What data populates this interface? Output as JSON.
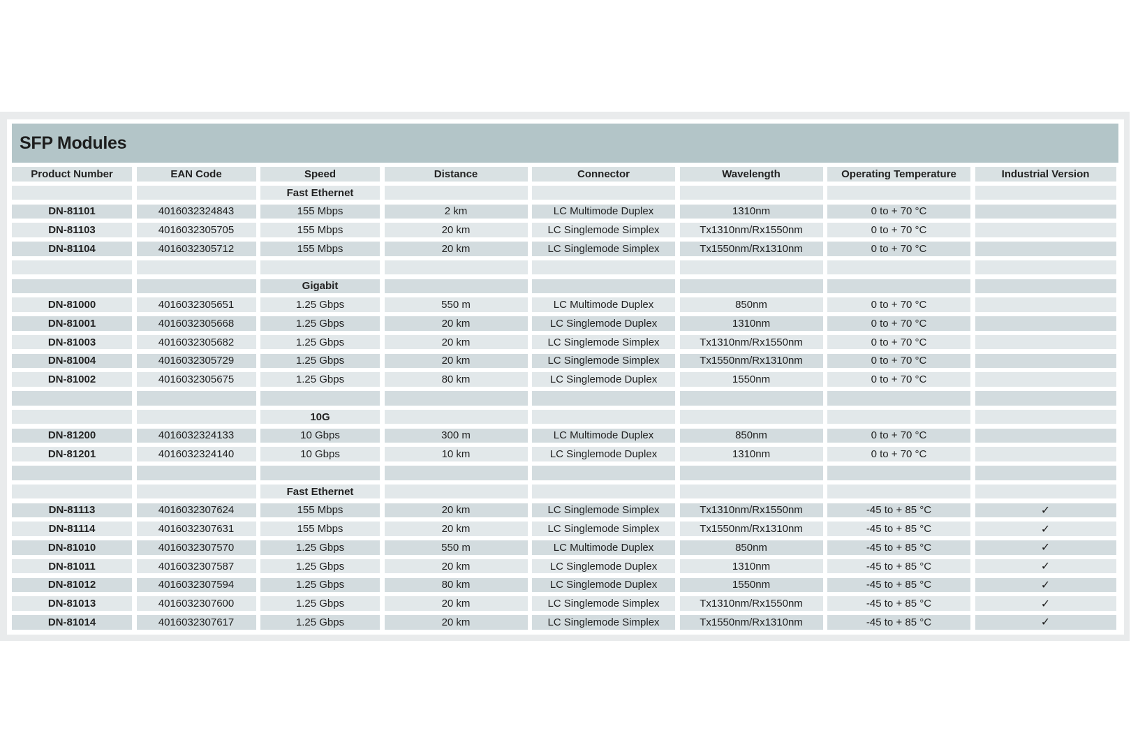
{
  "title": "SFP Modules",
  "colors": {
    "title_bar": "#b3c5c8",
    "row_dark": "#d3dcdf",
    "row_light": "#e2e8ea"
  },
  "columns": [
    "Product Number",
    "EAN Code",
    "Speed",
    "Distance",
    "Connector",
    "Wavelength",
    "Operating Temperature",
    "Industrial Version"
  ],
  "rows": [
    {
      "type": "section",
      "label": "Fast Ethernet"
    },
    {
      "type": "data",
      "cells": [
        "DN-81101",
        "4016032324843",
        "155 Mbps",
        "2 km",
        "LC Multimode Duplex",
        "1310nm",
        "0 to + 70 °C",
        ""
      ]
    },
    {
      "type": "data",
      "cells": [
        "DN-81103",
        "4016032305705",
        "155 Mbps",
        "20 km",
        "LC Singlemode Simplex",
        "Tx1310nm/Rx1550nm",
        "0 to + 70 °C",
        ""
      ]
    },
    {
      "type": "data",
      "cells": [
        "DN-81104",
        "4016032305712",
        "155 Mbps",
        "20 km",
        "LC Singlemode Simplex",
        "Tx1550nm/Rx1310nm",
        "0 to + 70 °C",
        ""
      ]
    },
    {
      "type": "blank"
    },
    {
      "type": "section",
      "label": "Gigabit"
    },
    {
      "type": "data",
      "cells": [
        "DN-81000",
        "4016032305651",
        "1.25 Gbps",
        "550 m",
        "LC Multimode Duplex",
        "850nm",
        "0 to + 70 °C",
        ""
      ]
    },
    {
      "type": "data",
      "cells": [
        "DN-81001",
        "4016032305668",
        "1.25 Gbps",
        "20 km",
        "LC Singlemode Duplex",
        "1310nm",
        "0 to + 70 °C",
        ""
      ]
    },
    {
      "type": "data",
      "cells": [
        "DN-81003",
        "4016032305682",
        "1.25 Gbps",
        "20 km",
        "LC Singlemode Simplex",
        "Tx1310nm/Rx1550nm",
        "0 to + 70 °C",
        ""
      ]
    },
    {
      "type": "data",
      "cells": [
        "DN-81004",
        "4016032305729",
        "1.25 Gbps",
        "20 km",
        "LC Singlemode Simplex",
        "Tx1550nm/Rx1310nm",
        "0 to + 70 °C",
        ""
      ]
    },
    {
      "type": "data",
      "cells": [
        "DN-81002",
        "4016032305675",
        "1.25 Gbps",
        "80 km",
        "LC Singlemode Duplex",
        "1550nm",
        "0 to + 70 °C",
        ""
      ]
    },
    {
      "type": "blank"
    },
    {
      "type": "section",
      "label": "10G"
    },
    {
      "type": "data",
      "cells": [
        "DN-81200",
        "4016032324133",
        "10 Gbps",
        "300 m",
        "LC Multimode Duplex",
        "850nm",
        "0 to + 70 °C",
        ""
      ]
    },
    {
      "type": "data",
      "cells": [
        "DN-81201",
        "4016032324140",
        "10 Gbps",
        "10 km",
        "LC Singlemode Duplex",
        "1310nm",
        "0 to + 70 °C",
        ""
      ]
    },
    {
      "type": "blank"
    },
    {
      "type": "section",
      "label": "Fast Ethernet"
    },
    {
      "type": "data",
      "cells": [
        "DN-81113",
        "4016032307624",
        "155 Mbps",
        "20 km",
        "LC Singlemode Simplex",
        "Tx1310nm/Rx1550nm",
        "-45 to + 85 °C",
        "✓"
      ]
    },
    {
      "type": "data",
      "cells": [
        "DN-81114",
        "4016032307631",
        "155 Mbps",
        "20 km",
        "LC Singlemode Simplex",
        "Tx1550nm/Rx1310nm",
        "-45 to + 85 °C",
        "✓"
      ]
    },
    {
      "type": "data",
      "cells": [
        "DN-81010",
        "4016032307570",
        "1.25 Gbps",
        "550 m",
        "LC Multimode Duplex",
        "850nm",
        "-45 to + 85 °C",
        "✓"
      ]
    },
    {
      "type": "data",
      "cells": [
        "DN-81011",
        "4016032307587",
        "1.25 Gbps",
        "20 km",
        "LC Singlemode Duplex",
        "1310nm",
        "-45 to + 85 °C",
        "✓"
      ]
    },
    {
      "type": "data",
      "cells": [
        "DN-81012",
        "4016032307594",
        "1.25 Gbps",
        "80 km",
        "LC Singlemode Duplex",
        "1550nm",
        "-45 to + 85 °C",
        "✓"
      ]
    },
    {
      "type": "data",
      "cells": [
        "DN-81013",
        "4016032307600",
        "1.25 Gbps",
        "20 km",
        "LC Singlemode Simplex",
        "Tx1310nm/Rx1550nm",
        "-45 to + 85 °C",
        "✓"
      ]
    },
    {
      "type": "data",
      "cells": [
        "DN-81014",
        "4016032307617",
        "1.25 Gbps",
        "20 km",
        "LC Singlemode Simplex",
        "Tx1550nm/Rx1310nm",
        "-45 to + 85 °C",
        "✓"
      ]
    }
  ]
}
